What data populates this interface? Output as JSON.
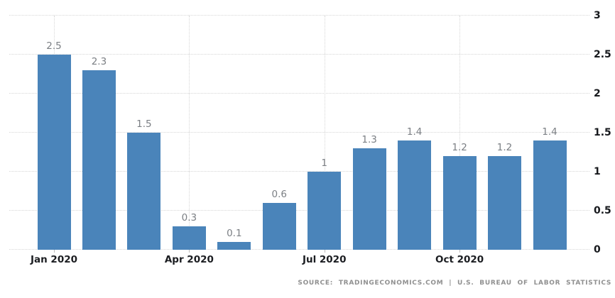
{
  "chart_data": {
    "type": "bar",
    "title": "",
    "xlabel": "",
    "ylabel": "",
    "categories": [
      "Jan 2020",
      "Feb 2020",
      "Mar 2020",
      "Apr 2020",
      "May 2020",
      "Jun 2020",
      "Jul 2020",
      "Aug 2020",
      "Sep 2020",
      "Oct 2020",
      "Nov 2020",
      "Dec 2020"
    ],
    "values": [
      2.5,
      2.3,
      1.5,
      0.3,
      0.1,
      0.6,
      1,
      1.3,
      1.4,
      1.2,
      1.2,
      1.4
    ],
    "value_labels": [
      "2.5",
      "2.3",
      "1.5",
      "0.3",
      "0.1",
      "0.6",
      "1",
      "1.3",
      "1.4",
      "1.2",
      "1.2",
      "1.4"
    ],
    "x_tick_labels": [
      "Jan 2020",
      "Apr 2020",
      "Jul 2020",
      "Oct 2020"
    ],
    "x_tick_indices": [
      0,
      3,
      6,
      9
    ],
    "y_ticks": [
      0,
      0.5,
      1,
      1.5,
      2,
      2.5,
      3
    ],
    "y_tick_labels": [
      "0",
      "0.5",
      "1",
      "1.5",
      "2",
      "2.5",
      "3"
    ],
    "ylim": [
      0,
      3
    ],
    "y_axis_position": "right",
    "grid": "dotted",
    "legend": "none",
    "bar_color": "#4a84ba",
    "value_label_color": "#7b7f84",
    "axis_text_color": "#1b1d21",
    "grid_color": "#d6d6d6"
  },
  "footer": {
    "source_text": "SOURCE: TRADINGECONOMICS.COM | U.S. BUREAU OF LABOR STATISTICS"
  }
}
